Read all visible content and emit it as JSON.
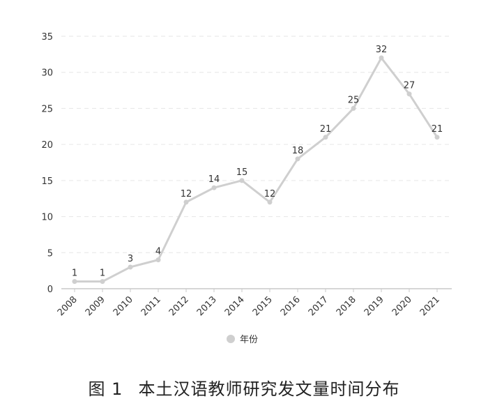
{
  "chart_data": {
    "type": "line",
    "x": [
      "2008",
      "2009",
      "2010",
      "2011",
      "2012",
      "2013",
      "2014",
      "2015",
      "2016",
      "2017",
      "2018",
      "2019",
      "2020",
      "2021"
    ],
    "series": [
      {
        "name": "年份",
        "values": [
          1,
          1,
          3,
          4,
          12,
          14,
          15,
          12,
          18,
          21,
          25,
          32,
          27,
          21
        ],
        "color": "#cfcfcf"
      }
    ],
    "ylim": [
      0,
      35
    ],
    "yticks": [
      0,
      5,
      10,
      15,
      20,
      25,
      30,
      35
    ],
    "grid": true,
    "legend": "bottom-center",
    "data_labels": true
  },
  "caption": {
    "figure": "图 1",
    "title": "本土汉语教师研究发文量时间分布"
  },
  "colors": {
    "axis": "#c8c8c8",
    "grid": "#e6e6e6",
    "text": "#333333"
  }
}
